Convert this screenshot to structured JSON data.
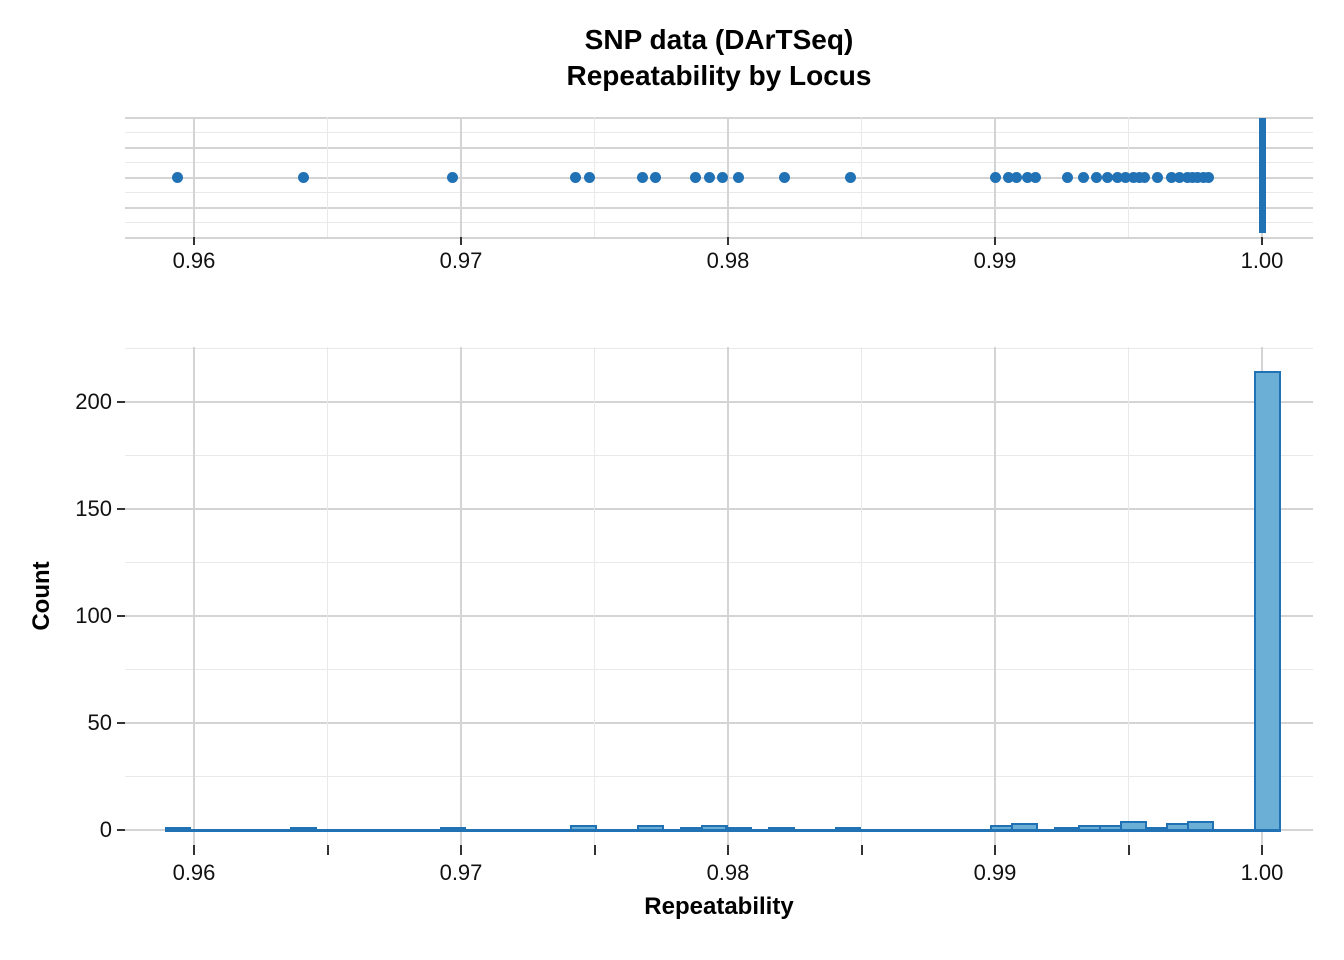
{
  "title": {
    "line1": "SNP data (DArTSeq)",
    "line2": "Repeatability by Locus"
  },
  "colors": {
    "point": "#2171b5",
    "bar_fill": "#6baed6",
    "bar_border": "#2171b5",
    "grid_major": "#d4d4d4",
    "grid_minor": "#e9e9e9",
    "tick": "#333333",
    "text": "#111111"
  },
  "chart_data": [
    {
      "type": "scatter",
      "subtype": "horizontal-boxplot-outlier-strip",
      "title": "SNP data (DArTSeq) — Repeatability by Locus",
      "xlabel": "",
      "ylabel": "",
      "xlim": [
        0.9575,
        1.0019
      ],
      "x_tick_values": [
        0.96,
        0.97,
        0.98,
        0.99,
        1.0
      ],
      "x_tick_labels": [
        "0.96",
        "0.97",
        "0.98",
        "0.99",
        "1.00"
      ],
      "x_minor_step": 0.005,
      "grid": true,
      "box_center": 1.0,
      "points": [
        0.9594,
        0.9641,
        0.9697,
        0.9743,
        0.9748,
        0.9768,
        0.9773,
        0.9788,
        0.9793,
        0.9798,
        0.9804,
        0.9821,
        0.9846,
        0.99,
        0.9905,
        0.9908,
        0.9912,
        0.9915,
        0.9927,
        0.9933,
        0.9938,
        0.9942,
        0.9946,
        0.9949,
        0.9952,
        0.9954,
        0.9956,
        0.9961,
        0.9966,
        0.9969,
        0.9972,
        0.9974,
        0.9976,
        0.9978,
        0.998
      ],
      "point_color": "#2171b5"
    },
    {
      "type": "bar",
      "subtype": "histogram",
      "xlabel": "Repeatability",
      "ylabel": "Count",
      "xlim": [
        0.9575,
        1.0019
      ],
      "ylim": [
        0,
        225
      ],
      "binwidth": 0.001,
      "x_tick_values": [
        0.96,
        0.97,
        0.98,
        0.99,
        1.0
      ],
      "x_tick_labels": [
        "0.96",
        "0.97",
        "0.98",
        "0.99",
        "1.00"
      ],
      "x_minor_step": 0.005,
      "y_tick_values": [
        0,
        50,
        100,
        150,
        200
      ],
      "y_tick_labels": [
        "0",
        "50",
        "100",
        "150",
        "200"
      ],
      "grid": true,
      "bins": [
        {
          "x": 0.9594,
          "count": 1
        },
        {
          "x": 0.9641,
          "count": 1
        },
        {
          "x": 0.9697,
          "count": 1
        },
        {
          "x": 0.9746,
          "count": 2
        },
        {
          "x": 0.9771,
          "count": 2
        },
        {
          "x": 0.9787,
          "count": 1
        },
        {
          "x": 0.9795,
          "count": 2
        },
        {
          "x": 0.9804,
          "count": 1
        },
        {
          "x": 0.982,
          "count": 1
        },
        {
          "x": 0.9845,
          "count": 1
        },
        {
          "x": 0.9903,
          "count": 2
        },
        {
          "x": 0.9911,
          "count": 3
        },
        {
          "x": 0.9927,
          "count": 1
        },
        {
          "x": 0.9936,
          "count": 2
        },
        {
          "x": 0.9944,
          "count": 2
        },
        {
          "x": 0.9952,
          "count": 4
        },
        {
          "x": 0.9961,
          "count": 1
        },
        {
          "x": 0.9969,
          "count": 3
        },
        {
          "x": 0.9977,
          "count": 4
        },
        {
          "x": 1.0002,
          "count": 214
        }
      ],
      "bar_fill": "#6baed6",
      "bar_border": "#2171b5"
    }
  ]
}
